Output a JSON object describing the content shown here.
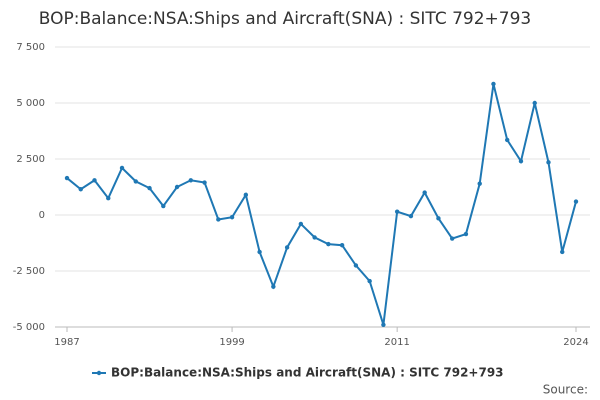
{
  "chart_data": {
    "type": "line",
    "title": "BOP:Balance:NSA:Ships and Aircraft(SNA) : SITC 792+793",
    "x": [
      1987,
      1988,
      1989,
      1990,
      1991,
      1992,
      1993,
      1994,
      1995,
      1996,
      1997,
      1998,
      1999,
      2000,
      2001,
      2002,
      2003,
      2004,
      2005,
      2006,
      2007,
      2008,
      2009,
      2010,
      2011,
      2012,
      2013,
      2014,
      2015,
      2016,
      2017,
      2018,
      2019,
      2020,
      2021,
      2022,
      2023,
      2024
    ],
    "series": [
      {
        "name": "BOP:Balance:NSA:Ships and Aircraft(SNA) : SITC 792+793",
        "color": "#1f78b4",
        "values": [
          1650,
          1150,
          1550,
          750,
          2100,
          1500,
          1200,
          400,
          1250,
          1550,
          1450,
          -200,
          -100,
          900,
          -1650,
          -3200,
          -1450,
          -400,
          -1000,
          -1300,
          -1350,
          -2250,
          -2950,
          -4900,
          150,
          -50,
          1000,
          -150,
          -1050,
          -850,
          1400,
          5850,
          3350,
          2400,
          5000,
          2350,
          -1650,
          600
        ]
      }
    ],
    "xlim": [
      1987,
      2024
    ],
    "xticks": [
      1987,
      1999,
      2011,
      2024
    ],
    "ylim": [
      -5000,
      7500
    ],
    "yticks": [
      {
        "value": -5000,
        "label": "-5 000"
      },
      {
        "value": -2500,
        "label": "-2 500"
      },
      0,
      {
        "value": 2500,
        "label": "2 500"
      },
      {
        "value": 5000,
        "label": "5 000"
      },
      {
        "value": 7500,
        "label": "7 500"
      }
    ],
    "grid": true,
    "source": "Source:"
  }
}
